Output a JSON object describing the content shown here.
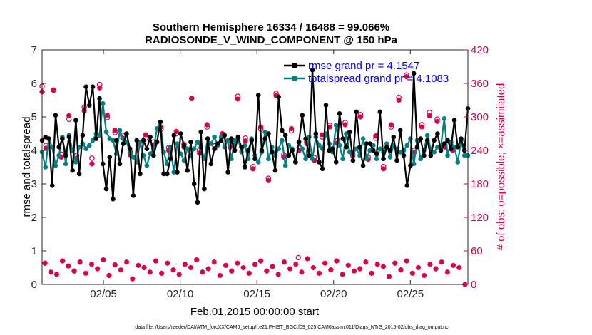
{
  "title_line1": "Southern Hemisphere 16334 / 16488 = 99.066%",
  "title_line2": "RADIOSONDE_V_WIND_COMPONENT @ 150 hPa",
  "xlabel": "Feb.01,2015 00:00:00 start",
  "ylabel_left": "rmse and totalspread",
  "ylabel_right": "# of obs: o=possible; ×=assimilated",
  "footer": "data file: /Users/raeder/DAI/ATM_forcXX/CAM6_setup/f.e21.FHIST_BGC.f09_025.CAM6assim.011/Diags_NTrS_2015-02/obs_diag_output.nc",
  "colors": {
    "rmse": "#000000",
    "spread": "#008080",
    "obs": "#d6004f",
    "legend_text": "#0000ff"
  },
  "chart_data": {
    "type": "line",
    "x_start_day": 1,
    "x_end_day": 28.75,
    "xticks": [
      {
        "day": 5,
        "label": "02/05"
      },
      {
        "day": 10,
        "label": "02/10"
      },
      {
        "day": 15,
        "label": "02/15"
      },
      {
        "day": 20,
        "label": "02/20"
      },
      {
        "day": 25,
        "label": "02/25"
      }
    ],
    "ylim_left": [
      0,
      7
    ],
    "yticks_left": [
      "0",
      "1",
      "2",
      "3",
      "4",
      "5",
      "6",
      "7"
    ],
    "ylim_right": [
      0,
      420
    ],
    "yticks_right": [
      "0",
      "60",
      "120",
      "180",
      "240",
      "300",
      "360",
      "420"
    ],
    "legend": [
      {
        "name": "rmse",
        "label": "rmse grand pr = 4.1547"
      },
      {
        "name": "totalspread",
        "label": "totalspread grand pr = 4.1083"
      }
    ],
    "rmse": [
      4.3,
      4.4,
      4.35,
      2.95,
      5.05,
      4.1,
      4.35,
      3.85,
      4.4,
      3.4,
      4.9,
      3.3,
      4.45,
      5.9,
      5.35,
      5.9,
      4.35,
      5.55,
      3.6,
      2.85,
      3.8,
      2.55,
      4.3,
      3.6,
      4.2,
      4.5,
      4.05,
      2.65,
      4.3,
      3.3,
      4.3,
      4.05,
      4.4,
      3.85,
      4.25,
      4.85,
      3.3,
      3.3,
      3.75,
      4.45,
      3.35,
      4.5,
      4.15,
      3.4,
      4.25,
      3.0,
      2.45,
      4.55,
      2.85,
      4.35,
      3.6,
      4.05,
      4.2,
      4.3,
      4.45,
      3.35,
      4.35,
      4.0,
      4.4,
      4.1,
      3.5,
      4.0,
      4.3,
      3.75,
      5.65,
      4.0,
      4.35,
      4.5,
      3.95,
      3.4,
      5.6,
      4.6,
      4.45,
      3.85,
      4.0,
      3.65,
      4.25,
      5.05,
      4.35,
      3.85,
      6.4,
      4.5,
      3.65,
      3.45,
      5.35,
      4.0,
      4.05,
      3.65,
      5.1,
      4.35,
      4.1,
      4.55,
      3.7,
      5.15,
      4.1,
      3.55,
      4.2,
      4.2,
      4.0,
      3.9,
      5.15,
      3.75,
      4.1,
      4.0,
      4.4,
      3.7,
      4.6,
      3.85,
      2.95,
      3.55,
      6.3,
      4.1,
      4.35,
      3.85,
      4.3,
      3.85,
      4.3,
      4.5,
      4.0,
      4.2,
      4.3,
      4.05,
      4.9,
      4.1,
      4.35,
      4.0,
      5.25
    ],
    "spread": [
      3.95,
      3.5,
      4.35,
      4.1,
      3.55,
      3.85,
      4.4,
      3.6,
      4.45,
      4.0,
      3.65,
      4.1,
      4.2,
      4.05,
      4.15,
      4.3,
      4.5,
      4.45,
      5.4,
      4.55,
      4.35,
      4.3,
      3.9,
      4.6,
      4.35,
      4.25,
      3.95,
      3.8,
      3.65,
      4.25,
      3.85,
      3.55,
      3.9,
      4.05,
      4.65,
      4.85,
      3.95,
      3.6,
      4.1,
      3.35,
      4.2,
      3.9,
      3.7,
      4.05,
      3.85,
      4.05,
      4.25,
      4.1,
      3.75,
      4.35,
      4.2,
      4.4,
      4.15,
      4.4,
      4.1,
      4.3,
      3.75,
      4.3,
      4.35,
      3.95,
      4.15,
      3.75,
      4.35,
      3.85,
      3.65,
      3.95,
      4.55,
      3.75,
      4.1,
      3.85,
      4.05,
      4.3,
      3.55,
      4.15,
      4.05,
      3.65,
      4.25,
      4.05,
      3.75,
      4.4,
      3.75,
      4.4,
      4.15,
      4.05,
      4.5,
      4.2,
      3.95,
      4.75,
      4.15,
      3.75,
      4.5,
      3.95,
      3.9,
      4.05,
      3.85,
      4.35,
      3.75,
      4.0,
      4.15,
      3.75,
      4.05,
      3.95,
      4.2,
      3.8,
      4.15,
      4.05,
      3.95,
      4.0,
      4.15,
      4.35,
      3.6,
      4.3,
      3.75,
      4.0,
      4.45,
      4.05,
      3.95,
      4.1,
      4.1,
      4.95,
      3.85,
      4.25,
      4.1,
      3.65,
      4.3,
      3.85,
      3.85
    ],
    "obs_possible_upper": [
      {
        "day": 1.0,
        "n": 355
      },
      {
        "day": 1.25,
        "n": 249
      },
      {
        "day": 1.75,
        "n": 348
      },
      {
        "day": 2.25,
        "n": 233
      },
      {
        "day": 2.75,
        "n": 296
      },
      {
        "day": 3.25,
        "n": 231
      },
      {
        "day": 3.75,
        "n": 317
      },
      {
        "day": 4.25,
        "n": 226
      },
      {
        "day": 4.75,
        "n": 358
      },
      {
        "day": 5.25,
        "n": 299
      },
      {
        "day": 5.75,
        "n": 272
      },
      {
        "day": 6.25,
        "n": 267
      },
      {
        "day": 6.75,
        "n": 237
      },
      {
        "day": 7.25,
        "n": 248
      },
      {
        "day": 7.75,
        "n": 262
      },
      {
        "day": 8.25,
        "n": 255
      },
      {
        "day": 8.75,
        "n": 278
      },
      {
        "day": 9.25,
        "n": 245
      },
      {
        "day": 9.75,
        "n": 270
      },
      {
        "day": 10.25,
        "n": 251
      },
      {
        "day": 10.75,
        "n": 333
      },
      {
        "day": 11.25,
        "n": 240
      },
      {
        "day": 11.75,
        "n": 282
      },
      {
        "day": 12.25,
        "n": 248
      },
      {
        "day": 12.75,
        "n": 265
      },
      {
        "day": 13.25,
        "n": 250
      },
      {
        "day": 13.75,
        "n": 337
      },
      {
        "day": 14.25,
        "n": 262
      },
      {
        "day": 14.75,
        "n": 211
      },
      {
        "day": 15.25,
        "n": 278
      },
      {
        "day": 15.75,
        "n": 190
      },
      {
        "day": 16.25,
        "n": 342
      },
      {
        "day": 16.75,
        "n": 232
      },
      {
        "day": 17.25,
        "n": 275
      },
      {
        "day": 17.75,
        "n": 245
      },
      {
        "day": 18.25,
        "n": 256
      },
      {
        "day": 18.75,
        "n": 227
      },
      {
        "day": 19.25,
        "n": 264
      },
      {
        "day": 19.75,
        "n": 285
      },
      {
        "day": 20.25,
        "n": 258
      },
      {
        "day": 20.75,
        "n": 290
      },
      {
        "day": 21.25,
        "n": 234
      },
      {
        "day": 21.75,
        "n": 304
      },
      {
        "day": 22.25,
        "n": 228
      },
      {
        "day": 22.75,
        "n": 262
      },
      {
        "day": 23.25,
        "n": 211
      },
      {
        "day": 23.75,
        "n": 282
      },
      {
        "day": 24.25,
        "n": 335
      },
      {
        "day": 24.75,
        "n": 375
      },
      {
        "day": 25.25,
        "n": 240
      },
      {
        "day": 25.75,
        "n": 286
      },
      {
        "day": 26.25,
        "n": 308
      },
      {
        "day": 26.75,
        "n": 296
      },
      {
        "day": 27.25,
        "n": 250
      },
      {
        "day": 27.75,
        "n": 245
      }
    ],
    "obs_assimilated_upper": [
      {
        "day": 1.0,
        "n": 345
      },
      {
        "day": 1.25,
        "n": 244
      },
      {
        "day": 1.75,
        "n": 348
      },
      {
        "day": 2.25,
        "n": 228
      },
      {
        "day": 2.75,
        "n": 302
      },
      {
        "day": 3.25,
        "n": 226
      },
      {
        "day": 3.75,
        "n": 311
      },
      {
        "day": 4.25,
        "n": 216
      },
      {
        "day": 4.75,
        "n": 352
      },
      {
        "day": 5.25,
        "n": 303
      },
      {
        "day": 5.75,
        "n": 276
      },
      {
        "day": 6.25,
        "n": 262
      },
      {
        "day": 6.75,
        "n": 232
      },
      {
        "day": 7.25,
        "n": 252
      },
      {
        "day": 7.75,
        "n": 268
      },
      {
        "day": 8.25,
        "n": 250
      },
      {
        "day": 8.75,
        "n": 282
      },
      {
        "day": 9.25,
        "n": 240
      },
      {
        "day": 9.75,
        "n": 274
      },
      {
        "day": 10.25,
        "n": 246
      },
      {
        "day": 10.75,
        "n": 333
      },
      {
        "day": 11.25,
        "n": 235
      },
      {
        "day": 11.75,
        "n": 286
      },
      {
        "day": 12.25,
        "n": 243
      },
      {
        "day": 12.75,
        "n": 270
      },
      {
        "day": 13.25,
        "n": 246
      },
      {
        "day": 13.75,
        "n": 332
      },
      {
        "day": 14.25,
        "n": 257
      },
      {
        "day": 14.75,
        "n": 207
      },
      {
        "day": 15.25,
        "n": 282
      },
      {
        "day": 15.75,
        "n": 186
      },
      {
        "day": 16.25,
        "n": 338
      },
      {
        "day": 16.75,
        "n": 228
      },
      {
        "day": 17.25,
        "n": 279
      },
      {
        "day": 17.75,
        "n": 240
      },
      {
        "day": 18.25,
        "n": 252
      },
      {
        "day": 18.75,
        "n": 222
      },
      {
        "day": 19.25,
        "n": 268
      },
      {
        "day": 19.75,
        "n": 282
      },
      {
        "day": 20.25,
        "n": 253
      },
      {
        "day": 20.75,
        "n": 286
      },
      {
        "day": 21.25,
        "n": 230
      },
      {
        "day": 21.75,
        "n": 300
      },
      {
        "day": 22.25,
        "n": 224
      },
      {
        "day": 22.75,
        "n": 266
      },
      {
        "day": 23.25,
        "n": 207
      },
      {
        "day": 23.75,
        "n": 286
      },
      {
        "day": 24.25,
        "n": 330
      },
      {
        "day": 24.75,
        "n": 372
      },
      {
        "day": 25.25,
        "n": 236
      },
      {
        "day": 25.75,
        "n": 282
      },
      {
        "day": 26.25,
        "n": 302
      },
      {
        "day": 26.75,
        "n": 292
      },
      {
        "day": 27.25,
        "n": 246
      },
      {
        "day": 27.75,
        "n": 240
      }
    ],
    "obs_lower": [
      38,
      22,
      18,
      42,
      33,
      24,
      40,
      20,
      36,
      28,
      44,
      16,
      35,
      26,
      40,
      10,
      34,
      30,
      22,
      42,
      20,
      38,
      26,
      18,
      36,
      30,
      44,
      22,
      28,
      40,
      16,
      34,
      24,
      38,
      30,
      20,
      36,
      42,
      24,
      32,
      18,
      40,
      28,
      36,
      22,
      46,
      30,
      20,
      38,
      26,
      42,
      18,
      34,
      24,
      28,
      40,
      20,
      36,
      32,
      14,
      38,
      26,
      42,
      20,
      30,
      16,
      36,
      28,
      40,
      22,
      34,
      30,
      0
    ],
    "obs_lower_possible_extra": [
      {
        "day": 17.7,
        "n": 48
      }
    ]
  }
}
